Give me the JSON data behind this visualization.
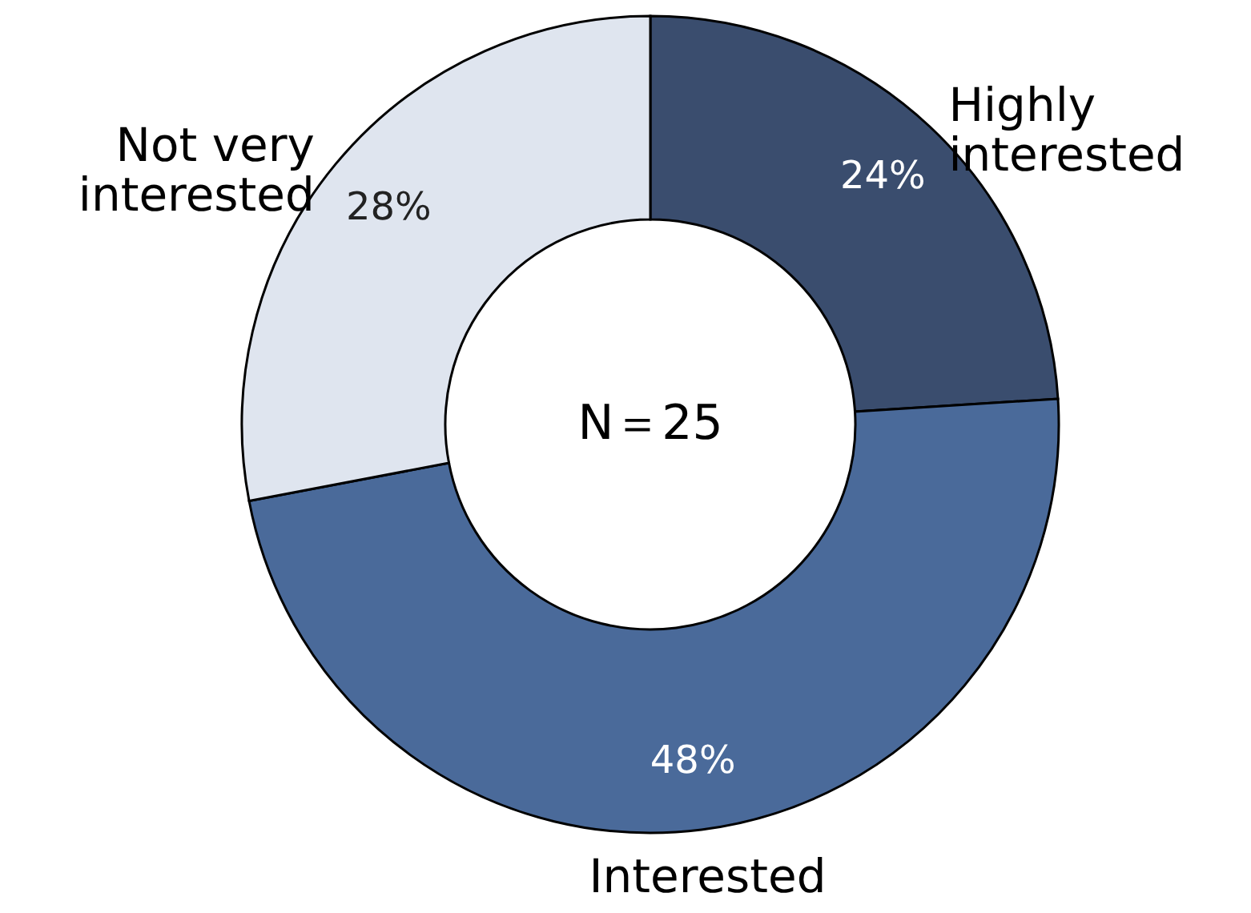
{
  "chart_data": {
    "type": "donut",
    "categories": [
      "Highly interested",
      "Interested",
      "Not very interested"
    ],
    "values": [
      24,
      48,
      28
    ],
    "colors": [
      "#3a4d6e",
      "#4a6a9a",
      "#dfe5ef"
    ],
    "value_labels": [
      "24%",
      "48%",
      "28%"
    ],
    "annotations": [
      "N＝25"
    ]
  }
}
